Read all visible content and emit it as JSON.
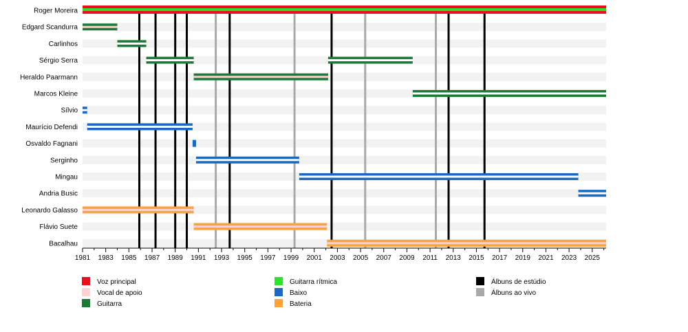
{
  "chart_data": {
    "type": "timeline",
    "xlim": [
      1981,
      2026.2
    ],
    "tick_labels": [
      "1981",
      "1983",
      "1985",
      "1987",
      "1989",
      "1991",
      "1993",
      "1995",
      "1997",
      "1999",
      "2001",
      "2003",
      "2005",
      "2007",
      "2009",
      "2011",
      "2013",
      "2015",
      "2017",
      "2019",
      "2021",
      "2023",
      "2025"
    ],
    "members": [
      {
        "name": "Roger Moreira",
        "bars": [
          {
            "role": "vocal",
            "start": 1981,
            "end": 2026.2
          },
          {
            "role": "rhythm",
            "start": 1981,
            "end": 2026.2
          },
          {
            "role": "vocal",
            "start": 1981,
            "end": 2026.2
          }
        ]
      },
      {
        "name": "Edgard Scandurra",
        "bars": [
          {
            "role": "guitar",
            "start": 1981,
            "end": 1984.0
          }
        ]
      },
      {
        "name": "Carlinhos",
        "bars": [
          {
            "role": "guitar",
            "start": 1984.0,
            "end": 1986.5
          }
        ]
      },
      {
        "name": "Sérgio Serra",
        "bars": [
          {
            "role": "guitar",
            "start": 1986.5,
            "end": 1990.6
          },
          {
            "role": "guitar",
            "start": 2002.2,
            "end": 2009.5
          }
        ]
      },
      {
        "name": "Heraldo Paarmann",
        "bars": [
          {
            "role": "guitar",
            "start": 1990.6,
            "end": 2002.2
          }
        ]
      },
      {
        "name": "Marcos Kleine",
        "bars": [
          {
            "role": "guitar",
            "start": 2009.5,
            "end": 2026.2
          }
        ]
      },
      {
        "name": "Sílvio",
        "bars": [
          {
            "role": "bass",
            "start": 1981,
            "end": 1981.4
          }
        ]
      },
      {
        "name": "Maurício Defendi",
        "bars": [
          {
            "role": "bass",
            "start": 1981.4,
            "end": 1990.5
          }
        ]
      },
      {
        "name": "Osvaldo Fagnani",
        "bars": [
          {
            "role": "bass",
            "start": 1990.5,
            "end": 1990.8
          }
        ]
      },
      {
        "name": "Serginho",
        "bars": [
          {
            "role": "bass",
            "start": 1990.8,
            "end": 1999.7
          }
        ]
      },
      {
        "name": "Mingau",
        "bars": [
          {
            "role": "bass",
            "start": 1999.7,
            "end": 2023.8
          }
        ]
      },
      {
        "name": "Andria Busic",
        "bars": [
          {
            "role": "bass",
            "start": 2023.8,
            "end": 2026.2
          }
        ]
      },
      {
        "name": "Leonardo Galasso",
        "bars": [
          {
            "role": "drums",
            "start": 1981,
            "end": 1990.6
          }
        ]
      },
      {
        "name": "Flávio Suete",
        "bars": [
          {
            "role": "drums",
            "start": 1990.6,
            "end": 2002.1
          }
        ]
      },
      {
        "name": "Bacalhau",
        "bars": [
          {
            "role": "drums",
            "start": 2002.1,
            "end": 2026.2
          }
        ]
      }
    ],
    "studio_albums": [
      1985.9,
      1987.3,
      1989.0,
      1990.0,
      1993.7,
      2002.5,
      2012.6,
      2015.7
    ],
    "live_albums": [
      1992.5,
      1999.3,
      2005.4,
      2011.5
    ],
    "backing_vocal_rows": [
      "Edgard Scandurra",
      "Heraldo Paarmann",
      "Leonardo Galasso",
      "Flávio Suete",
      "Bacalhau"
    ],
    "legend": [
      {
        "label": "Voz principal",
        "role": "vocal"
      },
      {
        "label": "Vocal de apoio",
        "role": "backing"
      },
      {
        "label": "Guitarra",
        "role": "guitar"
      },
      {
        "label": "Guitarra rítmica",
        "role": "rhythm"
      },
      {
        "label": "Baixo",
        "role": "bass"
      },
      {
        "label": "Bateria",
        "role": "drums"
      },
      {
        "label": "Álbuns de estúdio",
        "role": "studio"
      },
      {
        "label": "Álbuns ao vivo",
        "role": "live"
      }
    ],
    "colors": {
      "vocal": "#e8101c",
      "backing": "#fbd3d3",
      "guitar": "#197b35",
      "rhythm": "#2fe02f",
      "bass": "#1a68c1",
      "drums": "#fba33a",
      "studio": "#000000",
      "live": "#a9a9a9",
      "row_band": "#f2f2f2"
    }
  }
}
